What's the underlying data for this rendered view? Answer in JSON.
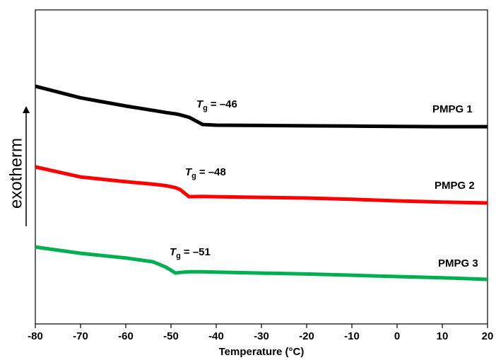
{
  "chart_data": {
    "type": "line",
    "xlabel": "Temperature (°C)",
    "ylabel": "exotherm",
    "x": [
      -80,
      -70,
      -60,
      -54,
      -51,
      -49,
      -48,
      -46,
      -43,
      -40,
      -30,
      -20,
      -10,
      0,
      10,
      20
    ],
    "series": [
      {
        "name": "PMPG 1",
        "color": "#000000",
        "values": [
          75.7,
          72,
          69.4,
          68,
          67.3,
          66.9,
          66.6,
          65.8,
          63.5,
          63.3,
          63.2,
          63.1,
          63.0,
          62.9,
          62.8,
          62.8
        ]
      },
      {
        "name": "PMPG 2",
        "color": "#ff0000",
        "values": [
          50,
          46.8,
          45.3,
          44.5,
          44,
          43.4,
          42.8,
          40.5,
          40.6,
          40.5,
          40.3,
          40.1,
          39.7,
          39.2,
          38.8,
          38.5
        ]
      },
      {
        "name": "PMPG 3",
        "color": "#00b050",
        "values": [
          24.5,
          22.5,
          21,
          19.8,
          18,
          16.2,
          16.4,
          16.6,
          16.6,
          16.5,
          16.2,
          15.9,
          15.5,
          15.1,
          14.7,
          14.2
        ]
      }
    ],
    "annotations": [
      {
        "symbol": "T",
        "subscript": "g",
        "text": "= –46"
      },
      {
        "symbol": "T",
        "subscript": "g",
        "text": "= –48"
      },
      {
        "symbol": "T",
        "subscript": "g",
        "text": "= –51"
      }
    ],
    "xlim": [
      -80,
      20
    ],
    "xticks": [
      -80,
      -70,
      -60,
      -50,
      -40,
      -30,
      -20,
      -10,
      0,
      10,
      20
    ],
    "ylim": [
      0,
      100
    ]
  }
}
